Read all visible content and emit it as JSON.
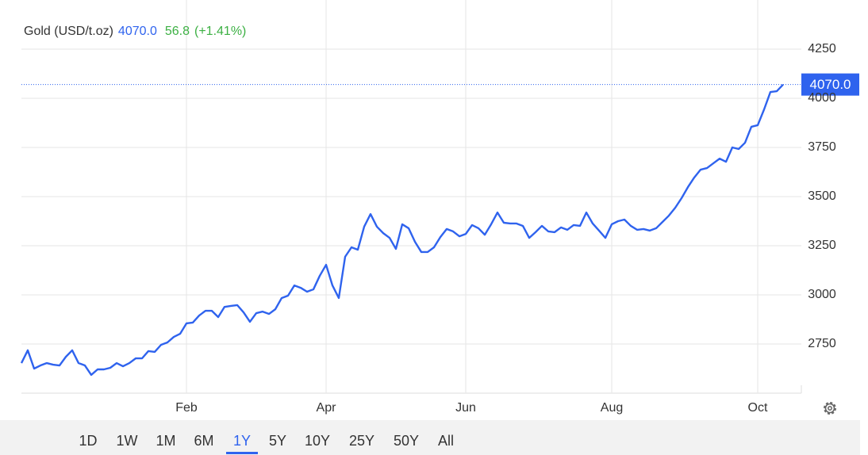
{
  "chart_data": {
    "type": "line",
    "title": "Gold (USD/t.oz)",
    "price": "4070.0",
    "change": "56.8",
    "change_pct": "(+1.41%)",
    "color": "#2f63ee",
    "categories": [
      null,
      null,
      null,
      null,
      null,
      null,
      null,
      null,
      null,
      null,
      null,
      null,
      null,
      null,
      null,
      null,
      null,
      null,
      null,
      null,
      null,
      null,
      null,
      null,
      null,
      null,
      "Feb",
      null,
      null,
      null,
      null,
      null,
      null,
      null,
      null,
      null,
      null,
      null,
      null,
      null,
      null,
      null,
      null,
      null,
      null,
      null,
      null,
      null,
      "Apr",
      null,
      null,
      null,
      null,
      null,
      null,
      null,
      null,
      null,
      null,
      null,
      null,
      null,
      null,
      null,
      null,
      null,
      null,
      null,
      null,
      null,
      "Jun",
      null,
      null,
      null,
      null,
      null,
      null,
      null,
      null,
      null,
      null,
      null,
      null,
      null,
      null,
      null,
      null,
      null,
      null,
      null,
      null,
      null,
      null,
      "Aug",
      null,
      null,
      null,
      null,
      null,
      null,
      null,
      null,
      null,
      null,
      null,
      null,
      null,
      null,
      null,
      null,
      null,
      null,
      null,
      null,
      null,
      null,
      "Oct",
      null,
      null,
      null,
      null
    ],
    "values": [
      2653,
      2718,
      2625,
      2641,
      2653,
      2645,
      2641,
      2685,
      2718,
      2653,
      2641,
      2593,
      2621,
      2621,
      2629,
      2653,
      2637,
      2653,
      2677,
      2677,
      2714,
      2710,
      2746,
      2758,
      2786,
      2802,
      2855,
      2859,
      2895,
      2919,
      2919,
      2887,
      2939,
      2944,
      2948,
      2911,
      2863,
      2907,
      2915,
      2903,
      2927,
      2984,
      2996,
      3048,
      3036,
      3016,
      3028,
      3097,
      3153,
      3048,
      2984,
      3194,
      3242,
      3230,
      3347,
      3411,
      3347,
      3314,
      3290,
      3234,
      3359,
      3339,
      3270,
      3218,
      3218,
      3242,
      3294,
      3335,
      3323,
      3298,
      3310,
      3355,
      3339,
      3306,
      3359,
      3419,
      3367,
      3363,
      3363,
      3351,
      3290,
      3319,
      3351,
      3323,
      3319,
      3343,
      3331,
      3355,
      3351,
      3419,
      3363,
      3327,
      3290,
      3359,
      3375,
      3383,
      3351,
      3331,
      3335,
      3327,
      3339,
      3371,
      3403,
      3443,
      3492,
      3548,
      3597,
      3637,
      3645,
      3669,
      3693,
      3677,
      3750,
      3742,
      3774,
      3855,
      3863,
      3943,
      4032,
      4036,
      4070
    ],
    "ylim": [
      2500,
      4500
    ],
    "yticks": [
      2750,
      3000,
      3250,
      3500,
      3750,
      4000,
      4250
    ],
    "grid": true
  },
  "range_selector": {
    "options": [
      "1D",
      "1W",
      "1M",
      "6M",
      "1Y",
      "5Y",
      "10Y",
      "25Y",
      "50Y",
      "All"
    ],
    "active": "1Y"
  }
}
